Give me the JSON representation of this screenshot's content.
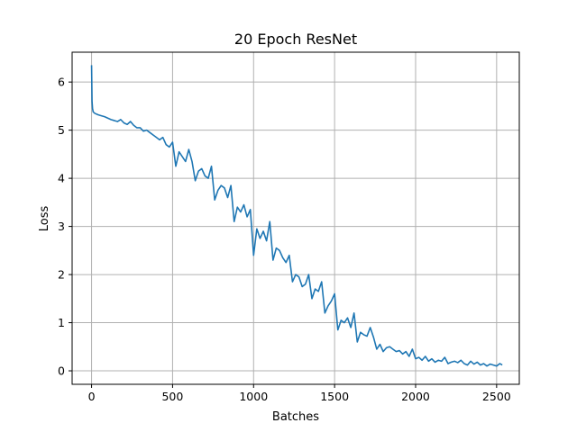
{
  "chart_data": {
    "type": "line",
    "title": "20 Epoch ResNet",
    "xlabel": "Batches",
    "ylabel": "Loss",
    "xlim": [
      -120,
      2640
    ],
    "ylim": [
      -0.28,
      6.62
    ],
    "xticks": [
      0,
      500,
      1000,
      1500,
      2000,
      2500
    ],
    "yticks": [
      0,
      1,
      2,
      3,
      4,
      5,
      6
    ],
    "grid": true,
    "series": [
      {
        "color": "#1f77b4",
        "x": [
          0,
          3,
          6,
          10,
          20,
          40,
          60,
          80,
          100,
          120,
          140,
          160,
          180,
          200,
          220,
          240,
          260,
          280,
          300,
          320,
          340,
          360,
          380,
          400,
          420,
          440,
          460,
          480,
          500,
          520,
          540,
          560,
          580,
          600,
          620,
          640,
          660,
          680,
          700,
          720,
          740,
          760,
          780,
          800,
          820,
          840,
          860,
          880,
          900,
          920,
          940,
          960,
          980,
          1000,
          1020,
          1040,
          1060,
          1080,
          1100,
          1120,
          1140,
          1160,
          1180,
          1200,
          1220,
          1240,
          1260,
          1280,
          1300,
          1320,
          1340,
          1360,
          1380,
          1400,
          1420,
          1440,
          1460,
          1480,
          1500,
          1520,
          1540,
          1560,
          1580,
          1600,
          1620,
          1640,
          1660,
          1680,
          1700,
          1720,
          1740,
          1760,
          1780,
          1800,
          1820,
          1840,
          1860,
          1880,
          1900,
          1920,
          1940,
          1960,
          1980,
          2000,
          2020,
          2040,
          2060,
          2080,
          2100,
          2120,
          2140,
          2160,
          2180,
          2200,
          2220,
          2240,
          2260,
          2280,
          2300,
          2320,
          2340,
          2360,
          2380,
          2400,
          2420,
          2440,
          2460,
          2480,
          2500,
          2520,
          2535
        ],
        "values": [
          6.35,
          5.6,
          5.45,
          5.38,
          5.35,
          5.32,
          5.3,
          5.28,
          5.25,
          5.22,
          5.2,
          5.18,
          5.22,
          5.15,
          5.12,
          5.18,
          5.1,
          5.05,
          5.05,
          4.98,
          5.0,
          4.95,
          4.9,
          4.85,
          4.8,
          4.85,
          4.7,
          4.65,
          4.75,
          4.25,
          4.55,
          4.45,
          4.35,
          4.6,
          4.35,
          3.95,
          4.15,
          4.2,
          4.05,
          4.0,
          4.25,
          3.55,
          3.75,
          3.85,
          3.8,
          3.6,
          3.85,
          3.1,
          3.4,
          3.3,
          3.45,
          3.2,
          3.35,
          2.4,
          2.95,
          2.75,
          2.9,
          2.7,
          3.1,
          2.3,
          2.55,
          2.5,
          2.35,
          2.25,
          2.4,
          1.85,
          2.0,
          1.95,
          1.75,
          1.8,
          2.0,
          1.5,
          1.7,
          1.65,
          1.85,
          1.2,
          1.35,
          1.45,
          1.6,
          0.85,
          1.05,
          1.0,
          1.1,
          0.9,
          1.2,
          0.6,
          0.8,
          0.75,
          0.72,
          0.9,
          0.7,
          0.45,
          0.55,
          0.4,
          0.48,
          0.5,
          0.45,
          0.4,
          0.42,
          0.35,
          0.4,
          0.3,
          0.45,
          0.25,
          0.28,
          0.22,
          0.3,
          0.2,
          0.25,
          0.18,
          0.22,
          0.2,
          0.28,
          0.15,
          0.18,
          0.2,
          0.17,
          0.22,
          0.15,
          0.12,
          0.2,
          0.14,
          0.18,
          0.12,
          0.15,
          0.1,
          0.14,
          0.12,
          0.1,
          0.15,
          0.12
        ]
      }
    ]
  }
}
